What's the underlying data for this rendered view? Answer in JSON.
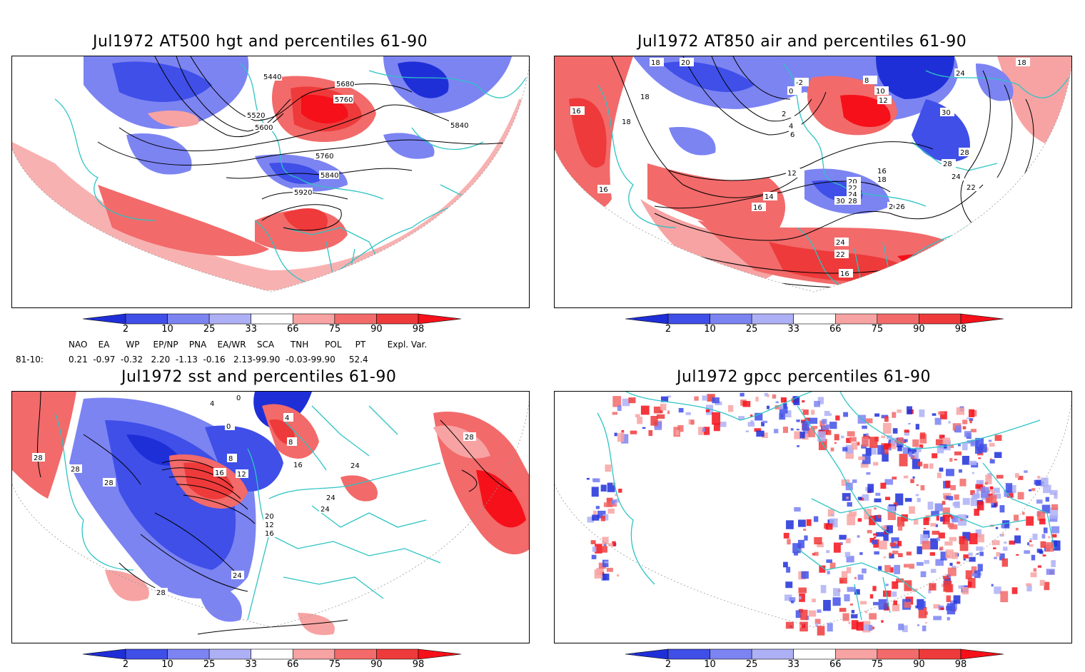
{
  "colors": {
    "very_low": "#1f2fd8",
    "low": "#3f4fe8",
    "mid_low": "#7c84f2",
    "weak_low": "#aeb0f6",
    "weak_high": "#f7a3a3",
    "mid_high": "#f26a6a",
    "high": "#ee3a3a",
    "very_high": "#f5101a",
    "coast": "#2ec4c4",
    "contour": "#000000"
  },
  "panels": [
    {
      "title": "Jul1972 AT500 hgt and percentiles 61-90",
      "contour_labels": [
        "5440",
        "5680",
        "5760",
        "5520",
        "5600",
        "5840",
        "5760",
        "5840",
        "5920"
      ]
    },
    {
      "title": "Jul1972 AT850 air and percentiles 61-90",
      "contour_labels": [
        "18",
        "20",
        "24",
        "18",
        "-2",
        "0",
        "8",
        "10",
        "12",
        "2",
        "4",
        "6",
        "18",
        "16",
        "12",
        "14",
        "16",
        "20",
        "22",
        "24",
        "28",
        "30",
        "16",
        "18",
        "26",
        "28",
        "24",
        "22",
        "20",
        "16",
        "30",
        "28",
        "24",
        "22",
        "26",
        "16",
        "20",
        "16",
        "18",
        "16"
      ]
    },
    {
      "title": "Jul1972 sst and percentiles 61-90",
      "contour_labels": [
        "28",
        "28",
        "28",
        "0",
        "4",
        "0",
        "4",
        "8",
        "8",
        "12",
        "16",
        "12",
        "16",
        "20",
        "24",
        "24",
        "24",
        "24",
        "28",
        "28",
        "16"
      ]
    },
    {
      "title": "Jul1972 gpcc percentiles 61-90",
      "contour_labels": []
    }
  ],
  "colorbar_ticks": [
    "2",
    "10",
    "25",
    "33",
    "66",
    "75",
    "90",
    "98"
  ],
  "indices": {
    "header": "NAO    EA      WP     EP/NP    PNA    EA/WR    SCA      TNH      POL     PT        Expl. Var.",
    "row_label": "81-10:",
    "row_values": "0.21  -0.97  -0.32   2.20  -1.13  -0.16   2.13-99.90  -0.03-99.90     52.4"
  }
}
